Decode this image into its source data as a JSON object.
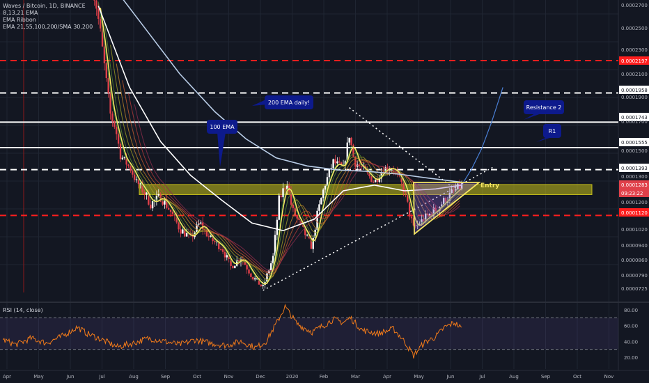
{
  "header": {
    "title": "Waves / Bitcoin, 1D, BINANCE",
    "indicators": [
      "8,13,21 EMA",
      "EMA Ribbon",
      "EMA 21,55,100,200/SMA 30,200"
    ]
  },
  "rsi": {
    "title": "RSI (14, close)",
    "ticks": [
      "80.00",
      "60.00",
      "40.00",
      "20.00"
    ],
    "upper": 70,
    "lower": 30
  },
  "price_axis": {
    "labels": [
      "0.0002700",
      "0.0002500",
      "0.0002300",
      "0.0002197",
      "0.0002100",
      "0.0001958",
      "0.0001900",
      "0.0001743",
      "0.0001700",
      "0.0001555",
      "0.0001500",
      "0.0001393",
      "0.0001300",
      "0.0001283",
      "09:23:22",
      "0.0001200",
      "0.0001120",
      "0.0001020",
      "0.0000940",
      "0.0000860",
      "0.0000790",
      "0.0000725"
    ]
  },
  "time_axis": {
    "labels": [
      "Apr",
      "May",
      "Jun",
      "Jul",
      "Aug",
      "Sep",
      "Oct",
      "Nov",
      "Dec",
      "2020",
      "Feb",
      "Mar",
      "Apr",
      "May",
      "Jun",
      "Jul",
      "Aug",
      "Sep",
      "Oct",
      "Nov"
    ]
  },
  "annotations": {
    "ema200": "200 EMA  daily!",
    "ema100": "100 EMA",
    "resistance2": "Resistance 2",
    "r1": "R1",
    "entry": "Entry"
  },
  "colors": {
    "background": "#131722",
    "up": "#ffffff",
    "down": "#e0404a",
    "ema_fast": "#f5e663",
    "ema100": "#ffffff",
    "ema200": "#b8cce6",
    "red_levels": "#ff1e1e",
    "white_levels": "#ffffff",
    "zone": "#c9c21a",
    "rsi_line": "#f07a1a",
    "rsi_band": "#7e57c2",
    "callout": "#0d1a8c"
  },
  "chart_data": {
    "type": "candlestick",
    "title": "Waves / Bitcoin, 1D, BINANCE",
    "x_range": [
      "2019-03-25",
      "2020-11-30"
    ],
    "y_range": [
      7.25e-05,
      0.00028
    ],
    "horizontal_levels": [
      {
        "price": 0.0002197,
        "style": "dashed",
        "color": "red"
      },
      {
        "price": 0.0001958,
        "style": "dashed",
        "color": "white"
      },
      {
        "price": 0.0001743,
        "style": "solid",
        "color": "white"
      },
      {
        "price": 0.0001555,
        "style": "solid",
        "color": "white"
      },
      {
        "price": 0.0001393,
        "style": "dashed",
        "color": "white"
      },
      {
        "price": 0.000112,
        "style": "dashed",
        "color": "red"
      }
    ],
    "entry_zone": [
      0.000123,
      0.0001283
    ],
    "last_price": 0.0001283,
    "price_path": [
      [
        "2019-06-25",
        0.000275
      ],
      [
        "2019-06-29",
        0.00026
      ],
      [
        "2019-07-03",
        0.00024
      ],
      [
        "2019-07-08",
        0.00021
      ],
      [
        "2019-07-13",
        0.00018
      ],
      [
        "2019-07-18",
        0.00017
      ],
      [
        "2019-07-23",
        0.00015
      ],
      [
        "2019-07-28",
        0.000145
      ],
      [
        "2019-08-02",
        0.00014
      ],
      [
        "2019-08-08",
        0.00013
      ],
      [
        "2019-08-15",
        0.000125
      ],
      [
        "2019-08-22",
        0.000118
      ],
      [
        "2019-09-01",
        0.000122
      ],
      [
        "2019-09-10",
        0.000115
      ],
      [
        "2019-09-20",
        0.000105
      ],
      [
        "2019-10-01",
        0.0001
      ],
      [
        "2019-10-10",
        0.000108
      ],
      [
        "2019-10-20",
        0.0001
      ],
      [
        "2019-11-01",
        9.5e-05
      ],
      [
        "2019-11-10",
        8.5e-05
      ],
      [
        "2019-11-20",
        9e-05
      ],
      [
        "2019-12-01",
        8e-05
      ],
      [
        "2019-12-12",
        7.4e-05
      ],
      [
        "2019-12-22",
        9e-05
      ],
      [
        "2019-12-28",
        0.00012
      ],
      [
        "2020-01-05",
        0.00013
      ],
      [
        "2020-01-10",
        0.000115
      ],
      [
        "2020-01-20",
        0.000105
      ],
      [
        "2020-01-30",
        9.5e-05
      ],
      [
        "2020-02-03",
        0.00011
      ],
      [
        "2020-02-10",
        0.000125
      ],
      [
        "2020-02-20",
        0.000145
      ],
      [
        "2020-03-01",
        0.00014
      ],
      [
        "2020-03-07",
        0.000165
      ],
      [
        "2020-03-12",
        0.000145
      ],
      [
        "2020-03-20",
        0.00014
      ],
      [
        "2020-04-01",
        0.00013
      ],
      [
        "2020-04-10",
        0.00014
      ],
      [
        "2020-04-20",
        0.00014
      ],
      [
        "2020-05-01",
        0.000125
      ],
      [
        "2020-05-05",
        0.000115
      ],
      [
        "2020-05-10",
        0.000105
      ],
      [
        "2020-05-20",
        0.00011
      ],
      [
        "2020-06-01",
        0.000115
      ],
      [
        "2020-06-10",
        0.00012
      ],
      [
        "2020-06-20",
        0.000125
      ],
      [
        "2020-06-27",
        0.000128
      ]
    ],
    "ema100_path": [
      [
        "2019-07-01",
        0.00026
      ],
      [
        "2019-08-01",
        0.0002
      ],
      [
        "2019-09-01",
        0.00016
      ],
      [
        "2019-10-01",
        0.000135
      ],
      [
        "2019-11-01",
        0.00012
      ],
      [
        "2019-12-01",
        0.000108
      ],
      [
        "2020-01-01",
        0.000104
      ],
      [
        "2020-02-01",
        0.00011
      ],
      [
        "2020-03-01",
        0.000125
      ],
      [
        "2020-04-01",
        0.000128
      ],
      [
        "2020-05-01",
        0.000125
      ],
      [
        "2020-06-01",
        0.000126
      ],
      [
        "2020-06-27",
        0.000128
      ]
    ],
    "ema200_path": [
      [
        "2019-07-10",
        0.00028
      ],
      [
        "2019-08-15",
        0.000245
      ],
      [
        "2019-09-20",
        0.00021
      ],
      [
        "2019-10-25",
        0.000182
      ],
      [
        "2019-11-25",
        0.000162
      ],
      [
        "2019-12-25",
        0.000148
      ],
      [
        "2020-01-25",
        0.000142
      ],
      [
        "2020-02-25",
        0.000139
      ],
      [
        "2020-03-25",
        0.000138
      ],
      [
        "2020-04-25",
        0.000136
      ],
      [
        "2020-05-25",
        0.000133
      ],
      [
        "2020-06-27",
        0.00013
      ]
    ],
    "projection_path": [
      [
        "2020-06-27",
        0.000128
      ],
      [
        "2020-07-07",
        0.00014
      ],
      [
        "2020-07-17",
        0.000155
      ],
      [
        "2020-07-27",
        0.000175
      ],
      [
        "2020-08-07",
        0.0002
      ]
    ],
    "rsi_path": [
      [
        "2019-03-28",
        42
      ],
      [
        "2019-04-10",
        36
      ],
      [
        "2019-04-25",
        44
      ],
      [
        "2019-05-10",
        38
      ],
      [
        "2019-05-25",
        46
      ],
      [
        "2019-06-10",
        58
      ],
      [
        "2019-06-20",
        50
      ],
      [
        "2019-07-05",
        42
      ],
      [
        "2019-07-20",
        33
      ],
      [
        "2019-08-05",
        38
      ],
      [
        "2019-08-20",
        44
      ],
      [
        "2019-09-05",
        40
      ],
      [
        "2019-09-20",
        36
      ],
      [
        "2019-10-05",
        42
      ],
      [
        "2019-10-20",
        38
      ],
      [
        "2019-11-05",
        35
      ],
      [
        "2019-11-20",
        40
      ],
      [
        "2019-12-05",
        32
      ],
      [
        "2019-12-15",
        40
      ],
      [
        "2019-12-25",
        62
      ],
      [
        "2020-01-03",
        84
      ],
      [
        "2020-01-15",
        62
      ],
      [
        "2020-01-30",
        52
      ],
      [
        "2020-02-10",
        60
      ],
      [
        "2020-02-20",
        68
      ],
      [
        "2020-03-01",
        64
      ],
      [
        "2020-03-08",
        70
      ],
      [
        "2020-03-20",
        54
      ],
      [
        "2020-04-05",
        50
      ],
      [
        "2020-04-20",
        56
      ],
      [
        "2020-05-01",
        40
      ],
      [
        "2020-05-10",
        22
      ],
      [
        "2020-05-20",
        38
      ],
      [
        "2020-06-01",
        46
      ],
      [
        "2020-06-10",
        58
      ],
      [
        "2020-06-20",
        64
      ],
      [
        "2020-06-27",
        56
      ]
    ],
    "trendlines": [
      {
        "from": [
          "2019-12-12",
          7.25e-05
        ],
        "to": [
          "2020-07-28",
          0.000141
        ],
        "style": "dotted"
      },
      {
        "from": [
          "2020-03-07",
          0.000185
        ],
        "to": [
          "2020-06-15",
          0.000128
        ],
        "style": "dotted"
      }
    ]
  }
}
